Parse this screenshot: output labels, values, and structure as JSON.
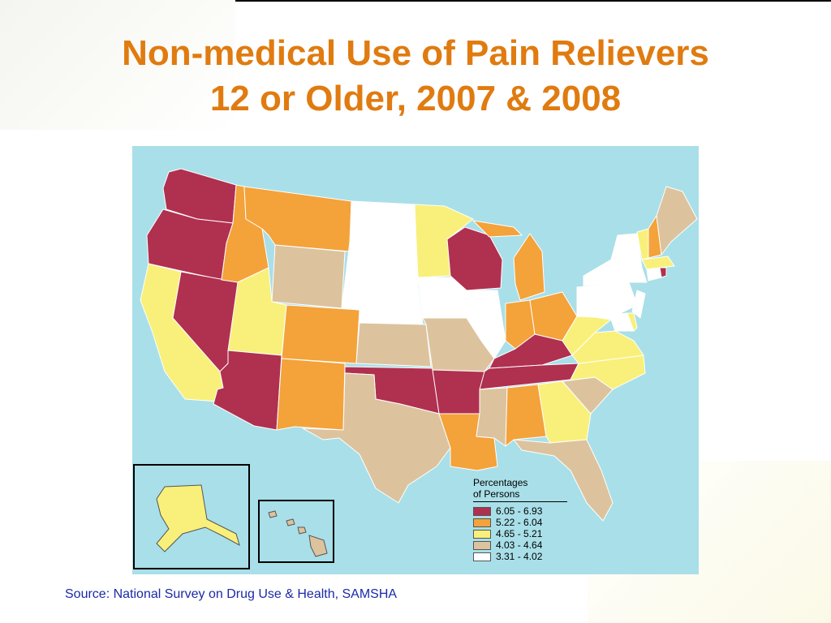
{
  "title": {
    "line1": "Non-medical Use of Pain Relievers",
    "line2": "12 or Older, 2007 & 2008"
  },
  "source": "Source: National Survey on Drug Use & Health, SAMSHA",
  "colors": {
    "ocean": "#a9dfe8",
    "title": "#e07b10",
    "source": "#1a2aa8"
  },
  "legend": {
    "title_line1": "Percentages",
    "title_line2": "of Persons",
    "items": [
      {
        "label": "6.05 - 6.93",
        "color": "#b03050"
      },
      {
        "label": "5.22 - 6.04",
        "color": "#f4a23a"
      },
      {
        "label": "4.65 - 5.21",
        "color": "#f8f07a"
      },
      {
        "label": "4.03 - 4.64",
        "color": "#dcc39e"
      },
      {
        "label": "3.31 - 4.02",
        "color": "#ffffff"
      }
    ]
  },
  "states": [
    {
      "id": "WA",
      "category": 0
    },
    {
      "id": "OR",
      "category": 0
    },
    {
      "id": "NV",
      "category": 0
    },
    {
      "id": "AZ",
      "category": 0
    },
    {
      "id": "OK",
      "category": 0
    },
    {
      "id": "AR",
      "category": 0
    },
    {
      "id": "KY",
      "category": 0
    },
    {
      "id": "TN",
      "category": 0
    },
    {
      "id": "WI",
      "category": 0
    },
    {
      "id": "RI",
      "category": 0
    },
    {
      "id": "ID",
      "category": 1
    },
    {
      "id": "MT",
      "category": 1
    },
    {
      "id": "CO",
      "category": 1
    },
    {
      "id": "NM",
      "category": 1
    },
    {
      "id": "MI",
      "category": 1
    },
    {
      "id": "IN",
      "category": 1
    },
    {
      "id": "OH",
      "category": 1
    },
    {
      "id": "AL",
      "category": 1
    },
    {
      "id": "LA",
      "category": 1
    },
    {
      "id": "NH",
      "category": 1
    },
    {
      "id": "CA",
      "category": 2
    },
    {
      "id": "UT",
      "category": 2
    },
    {
      "id": "MN",
      "category": 2
    },
    {
      "id": "WV",
      "category": 2
    },
    {
      "id": "VA",
      "category": 2
    },
    {
      "id": "NC",
      "category": 2
    },
    {
      "id": "GA",
      "category": 2
    },
    {
      "id": "VT",
      "category": 2
    },
    {
      "id": "MA",
      "category": 2
    },
    {
      "id": "AK",
      "category": 2
    },
    {
      "id": "DE",
      "category": 2
    },
    {
      "id": "WY",
      "category": 3
    },
    {
      "id": "KS",
      "category": 3
    },
    {
      "id": "MO",
      "category": 3
    },
    {
      "id": "TX",
      "category": 3
    },
    {
      "id": "MS",
      "category": 3
    },
    {
      "id": "SC",
      "category": 3
    },
    {
      "id": "FL",
      "category": 3
    },
    {
      "id": "ME",
      "category": 3
    },
    {
      "id": "HI",
      "category": 3
    },
    {
      "id": "ND",
      "category": 4
    },
    {
      "id": "SD",
      "category": 4
    },
    {
      "id": "NE",
      "category": 4
    },
    {
      "id": "IA",
      "category": 4
    },
    {
      "id": "IL",
      "category": 4
    },
    {
      "id": "NY",
      "category": 4
    },
    {
      "id": "PA",
      "category": 4
    },
    {
      "id": "NJ",
      "category": 4
    },
    {
      "id": "CT",
      "category": 4
    },
    {
      "id": "MD",
      "category": 4
    }
  ]
}
